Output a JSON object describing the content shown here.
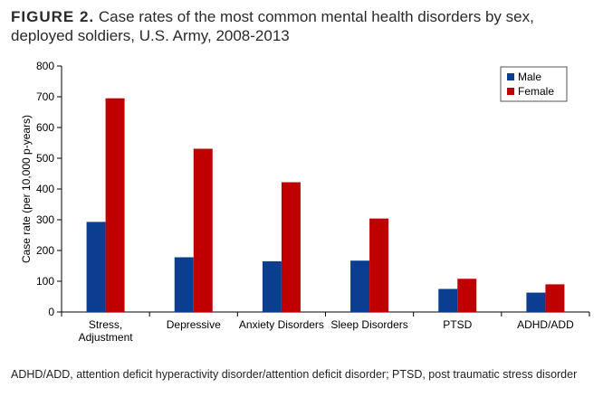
{
  "caption": {
    "label": "FIGURE 2.",
    "text": "Case rates of the most common mental health disorders by sex, deployed soldiers, U.S. Army, 2008-2013"
  },
  "footnote": "ADHD/ADD, attention deficit hyperactivity disorder/attention deficit disorder; PTSD, post traumatic stress disorder",
  "colors": {
    "male": "#0b3d91",
    "female": "#c00000"
  },
  "chart_data": {
    "type": "bar",
    "categories": [
      [
        "Stress,",
        "Adjustment"
      ],
      [
        "Depressive"
      ],
      [
        "Anxiety Disorders"
      ],
      [
        "Sleep Disorders"
      ],
      [
        "PTSD"
      ],
      [
        "ADHD/ADD"
      ]
    ],
    "series": [
      {
        "name": "Male",
        "values": [
          293,
          178,
          165,
          167,
          75,
          63
        ]
      },
      {
        "name": "Female",
        "values": [
          695,
          531,
          422,
          304,
          108,
          90
        ]
      }
    ],
    "ylabel": "Case rate (per 10,000 p-years)",
    "ylim": [
      0,
      800
    ],
    "yticks": [
      0,
      100,
      200,
      300,
      400,
      500,
      600,
      700,
      800
    ],
    "grid": false,
    "legend": "top-right"
  }
}
